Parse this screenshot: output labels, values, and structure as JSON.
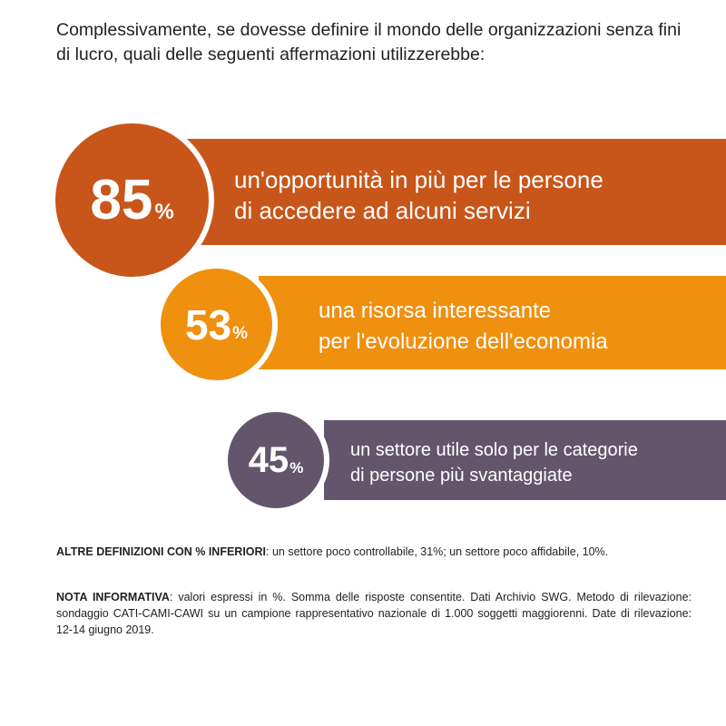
{
  "question": "Complessivamente, se dovesse definire il mondo delle organizzazioni senza fini di lucro, quali delle seguenti affermazioni utilizzerebbe:",
  "chart_data": {
    "type": "bar",
    "title": "Complessivamente, se dovesse definire il mondo delle organizzazioni senza fini di lucro, quali delle seguenti affermazioni utilizzerebbe:",
    "categories": [
      "un'opportunità in più per le persone di accedere ad alcuni servizi",
      "una risorsa interessante per l'evoluzione dell'economia",
      "un settore utile solo per le categorie di persone più svantaggiate"
    ],
    "values": [
      85,
      53,
      45
    ],
    "unit": "%",
    "colors": [
      "#C8561A",
      "#F0900F",
      "#63566C"
    ]
  },
  "items": [
    {
      "value": "85",
      "unit": "%",
      "line1": "un'opportunità in più per le persone",
      "line2": "di accedere ad alcuni servizi",
      "color": "#C8561A"
    },
    {
      "value": "53",
      "unit": "%",
      "line1": "una risorsa interessante",
      "line2": "per l'evoluzione dell'economia",
      "color": "#F0900F"
    },
    {
      "value": "45",
      "unit": "%",
      "line1": "un settore utile solo per le categorie",
      "line2": "di persone più svantaggiate",
      "color": "#63566C"
    }
  ],
  "other_definitions": {
    "label": "ALTRE DEFINIZIONI CON % INFERIORI",
    "text": ": un settore poco controllabile, 31%; un settore poco affidabile, 10%."
  },
  "info_note": {
    "label": "NOTA INFORMATIVA",
    "text": ": valori espressi in %. Somma delle risposte consentite. Dati Archivio SWG. Metodo di rilevazione: sondaggio CATI-CAMI-CAWI su un campione rappresentativo nazionale di 1.000 soggetti maggiorenni. Date di rilevazione: 12-14 giugno 2019."
  }
}
